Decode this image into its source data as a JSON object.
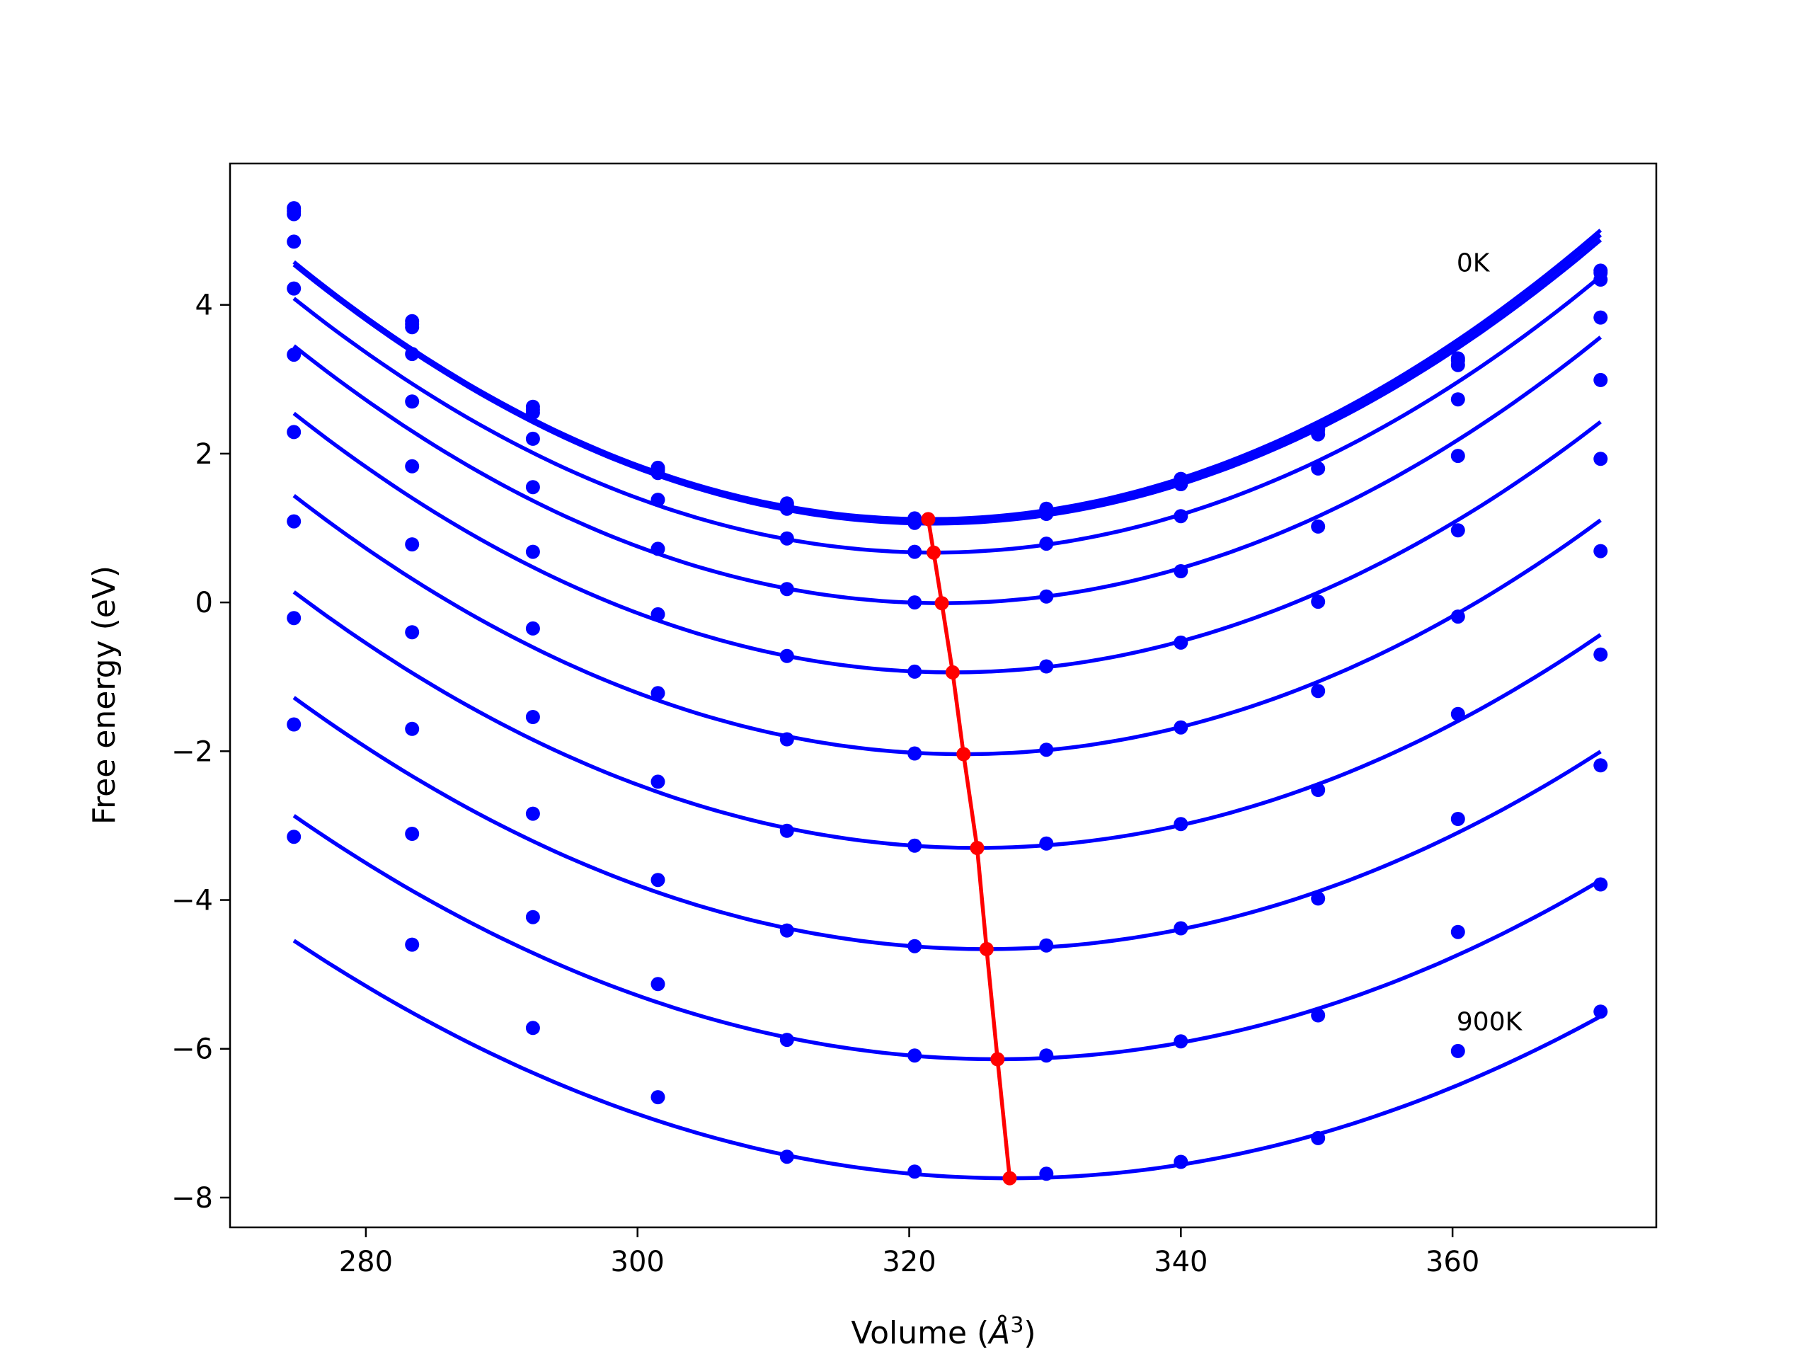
{
  "chart_data": {
    "type": "scatter",
    "title": "",
    "xlabel": "Volume ($\\AA^3$)",
    "xlabel_parts": {
      "prefix": "Volume (",
      "symbol": "Å",
      "sup": "3",
      "suffix": ")"
    },
    "ylabel": "Free energy (eV)",
    "xlim": [
      270,
      375
    ],
    "ylim": [
      -8.4,
      5.9
    ],
    "grid": false,
    "legend": "none",
    "xticks": [
      280,
      300,
      320,
      340,
      360
    ],
    "xtick_labels": [
      "280",
      "300",
      "320",
      "340",
      "360"
    ],
    "yticks": [
      -8,
      -6,
      -4,
      -2,
      0,
      2,
      4
    ],
    "ytick_labels": [
      "−8",
      "−6",
      "−4",
      "−2",
      "0",
      "2",
      "4"
    ],
    "annotations": [
      {
        "text": "0K",
        "x": 360.3,
        "y": 4.45
      },
      {
        "text": "900K",
        "x": 360.3,
        "y": -5.75
      }
    ],
    "x": [
      274.7,
      283.4,
      292.3,
      301.5,
      311.0,
      320.4,
      330.1,
      340.0,
      350.1,
      360.4,
      370.9
    ],
    "series": [
      {
        "temperature": "0K",
        "color": "#0000ff",
        "points": [
          5.3,
          3.78,
          2.63,
          1.81,
          1.33,
          1.13,
          1.26,
          1.66,
          2.34,
          3.28,
          4.46
        ],
        "fit": {
          "V0": 321.4,
          "E0": 1.12,
          "a": 0.001585
        }
      },
      {
        "color": "#0000ff",
        "points": [
          5.26,
          3.74,
          2.59,
          1.78,
          1.3,
          1.11,
          1.24,
          1.64,
          2.32,
          3.25,
          4.43
        ],
        "fit": {
          "V0": 321.6,
          "E0": 1.1,
          "a": 0.00158
        }
      },
      {
        "color": "#0000ff",
        "points": [
          5.22,
          3.7,
          2.55,
          1.74,
          1.26,
          1.07,
          1.19,
          1.59,
          2.26,
          3.19,
          4.34
        ],
        "fit": {
          "V0": 321.7,
          "E0": 1.06,
          "a": 0.001575
        }
      },
      {
        "color": "#0000ff",
        "points": [
          4.85,
          3.34,
          2.2,
          1.38,
          0.86,
          0.68,
          0.79,
          1.16,
          1.8,
          2.73,
          3.83
        ],
        "fit": {
          "V0": 321.8,
          "E0": 0.67,
          "a": 0.00154
        }
      },
      {
        "color": "#0000ff",
        "points": [
          4.22,
          2.7,
          1.55,
          0.72,
          0.18,
          0.0,
          0.08,
          0.42,
          1.02,
          1.97,
          2.99
        ],
        "fit": {
          "V0": 322.4,
          "E0": -0.01,
          "a": 0.00152
        }
      },
      {
        "color": "#0000ff",
        "points": [
          3.33,
          1.83,
          0.68,
          -0.16,
          -0.72,
          -0.93,
          -0.86,
          -0.54,
          0.01,
          0.97,
          1.93
        ],
        "fit": {
          "V0": 323.2,
          "E0": -0.94,
          "a": 0.00148
        }
      },
      {
        "color": "#0000ff",
        "points": [
          2.29,
          0.78,
          -0.35,
          -1.22,
          -1.84,
          -2.03,
          -1.98,
          -1.68,
          -1.19,
          -0.19,
          0.69
        ],
        "fit": {
          "V0": 324.0,
          "E0": -2.04,
          "a": 0.00143
        }
      },
      {
        "color": "#0000ff",
        "points": [
          1.09,
          -0.4,
          -1.54,
          -2.41,
          -3.07,
          -3.27,
          -3.24,
          -2.98,
          -2.52,
          -1.5,
          -0.7
        ],
        "fit": {
          "V0": 325.0,
          "E0": -3.3,
          "a": 0.00136
        }
      },
      {
        "color": "#0000ff",
        "points": [
          -0.21,
          -1.7,
          -2.84,
          -3.73,
          -4.41,
          -4.62,
          -4.61,
          -4.38,
          -3.98,
          -2.91,
          -2.19
        ],
        "fit": {
          "V0": 325.7,
          "E0": -4.66,
          "a": 0.0013
        }
      },
      {
        "color": "#0000ff",
        "points": [
          -1.64,
          -3.11,
          -4.23,
          -5.13,
          -5.88,
          -6.09,
          -6.09,
          -5.9,
          -5.55,
          -4.43,
          -3.79
        ],
        "fit": {
          "V0": 326.5,
          "E0": -6.14,
          "a": 0.00122
        }
      },
      {
        "temperature": "900K",
        "color": "#0000ff",
        "points": [
          -3.15,
          -4.6,
          -5.72,
          -6.65,
          -7.45,
          -7.65,
          -7.68,
          -7.52,
          -7.2,
          -6.03,
          -5.5
        ],
        "fit": {
          "V0": 327.4,
          "E0": -7.74,
          "a": 0.00115
        }
      }
    ],
    "minimum_line": {
      "name": "",
      "color": "#ff0000",
      "x": [
        321.4,
        321.8,
        322.4,
        323.2,
        324.0,
        325.0,
        325.7,
        326.5,
        327.4
      ],
      "y": [
        1.12,
        0.67,
        -0.01,
        -0.94,
        -2.04,
        -3.3,
        -4.66,
        -6.14,
        -7.74
      ]
    }
  }
}
